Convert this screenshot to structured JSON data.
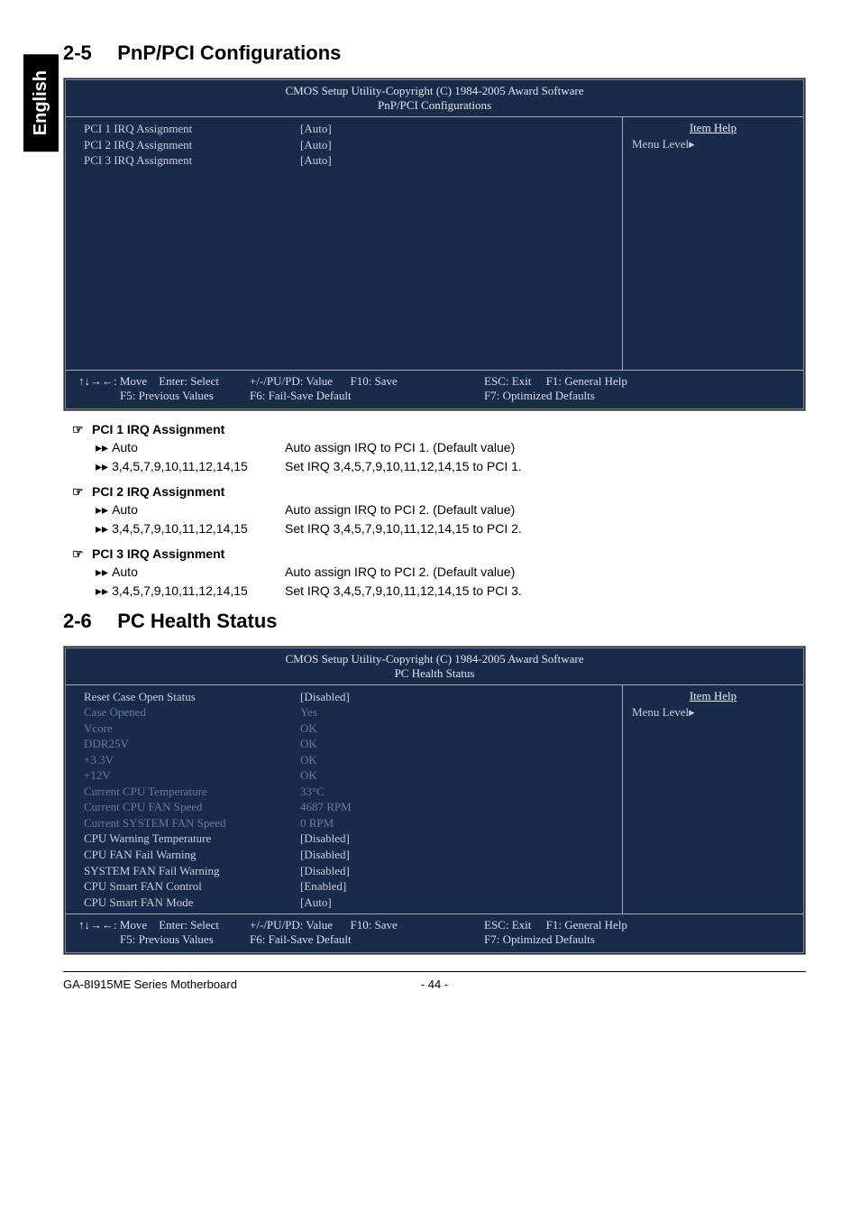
{
  "sidebar": {
    "label": "English"
  },
  "section25": {
    "num": "2-5",
    "title": "PnP/PCI Configurations"
  },
  "section26": {
    "num": "2-6",
    "title": "PC Health Status"
  },
  "bios_common": {
    "title1": "CMOS Setup Utility-Copyright (C) 1984-2005 Award Software",
    "help_title": "Item Help",
    "menu_level": "Menu Level▸",
    "footer": {
      "move": "↑↓→←: Move",
      "enter": "Enter: Select",
      "value": "+/-/PU/PD: Value",
      "save": "F10: Save",
      "esc": "ESC: Exit",
      "f1": "F1: General Help",
      "f5": "F5: Previous Values",
      "f6": "F6: Fail-Save Default",
      "f7": "F7: Optimized Defaults"
    }
  },
  "bios_pnp": {
    "subtitle": "PnP/PCI Configurations",
    "rows": [
      {
        "label": "PCI 1 IRQ Assignment",
        "value": "[Auto]",
        "dim": false
      },
      {
        "label": "PCI 2 IRQ Assignment",
        "value": "[Auto]",
        "dim": false
      },
      {
        "label": "PCI 3 IRQ Assignment",
        "value": "[Auto]",
        "dim": false
      }
    ]
  },
  "bios_health": {
    "subtitle": "PC Health Status",
    "rows": [
      {
        "label": "Reset Case Open Status",
        "value": "[Disabled]",
        "dim": false
      },
      {
        "label": "Case Opened",
        "value": "Yes",
        "dim": true
      },
      {
        "label": "Vcore",
        "value": "OK",
        "dim": true
      },
      {
        "label": "DDR25V",
        "value": "OK",
        "dim": true
      },
      {
        "label": "+3.3V",
        "value": "OK",
        "dim": true
      },
      {
        "label": "+12V",
        "value": "OK",
        "dim": true
      },
      {
        "label": "Current CPU Temperature",
        "value": "33°C",
        "dim": true
      },
      {
        "label": "Current CPU FAN Speed",
        "value": "4687 RPM",
        "dim": true
      },
      {
        "label": "Current SYSTEM FAN Speed",
        "value": "0     RPM",
        "dim": true
      },
      {
        "label": "CPU Warning Temperature",
        "value": "[Disabled]",
        "dim": false
      },
      {
        "label": "CPU FAN Fail Warning",
        "value": "[Disabled]",
        "dim": false
      },
      {
        "label": "SYSTEM FAN Fail Warning",
        "value": "[Disabled]",
        "dim": false
      },
      {
        "label": "CPU Smart FAN Control",
        "value": "[Enabled]",
        "dim": false
      },
      {
        "label": "CPU Smart FAN Mode",
        "value": "[Auto]",
        "dim": false
      }
    ]
  },
  "descriptions": {
    "items": [
      {
        "head": "PCI 1 IRQ Assignment",
        "rows": [
          {
            "k": "Auto",
            "v": "Auto assign IRQ to PCI 1. (Default value)"
          },
          {
            "k": "3,4,5,7,9,10,11,12,14,15",
            "v": "Set IRQ 3,4,5,7,9,10,11,12,14,15 to PCI 1."
          }
        ]
      },
      {
        "head": "PCI 2 IRQ Assignment",
        "rows": [
          {
            "k": "Auto",
            "v": "Auto assign IRQ to PCI 2. (Default value)"
          },
          {
            "k": "3,4,5,7,9,10,11,12,14,15",
            "v": "Set IRQ 3,4,5,7,9,10,11,12,14,15 to PCI 2."
          }
        ]
      },
      {
        "head": "PCI 3 IRQ Assignment",
        "rows": [
          {
            "k": "Auto",
            "v": "Auto assign IRQ to PCI 2. (Default value)"
          },
          {
            "k": "3,4,5,7,9,10,11,12,14,15",
            "v": "Set IRQ 3,4,5,7,9,10,11,12,14,15 to PCI 3."
          }
        ]
      }
    ]
  },
  "page_footer": {
    "left": "GA-8I915ME Series Motherboard",
    "center": "- 44 -"
  },
  "glyphs": {
    "hand": "☞",
    "dbl": "▸▸"
  }
}
